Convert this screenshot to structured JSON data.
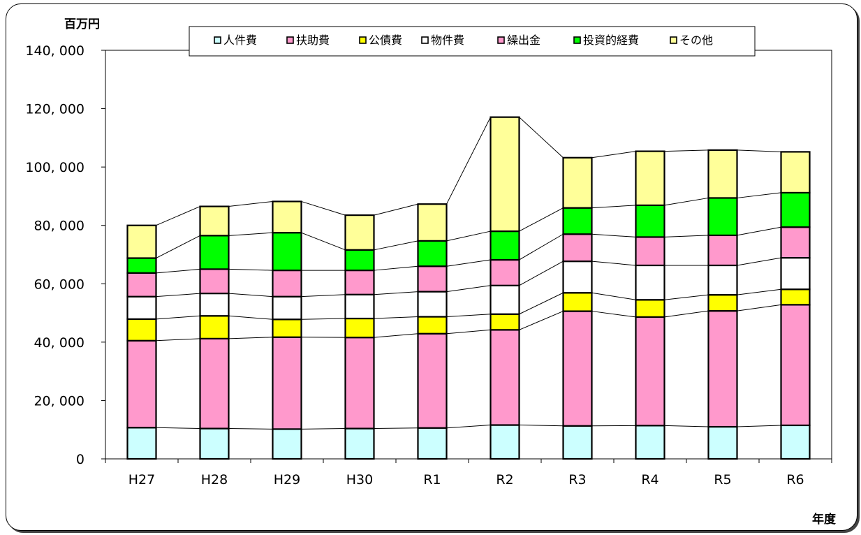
{
  "chart_data": {
    "type": "bar",
    "stacked": true,
    "categories": [
      "H27",
      "H28",
      "H29",
      "H30",
      "R1",
      "R2",
      "R3",
      "R4",
      "R5",
      "R6"
    ],
    "series": [
      {
        "name": "人件費",
        "color": "#ccffff",
        "values": [
          10700,
          10400,
          10200,
          10400,
          10600,
          11600,
          11300,
          11400,
          11000,
          11500
        ]
      },
      {
        "name": "扶助費",
        "color": "#ff99cc",
        "values": [
          29800,
          30800,
          31500,
          31200,
          32300,
          32600,
          39300,
          37200,
          39700,
          41300
        ]
      },
      {
        "name": "公債費",
        "color": "#ffff00",
        "values": [
          7400,
          7800,
          6100,
          6500,
          5800,
          5400,
          6300,
          5900,
          5500,
          5300
        ]
      },
      {
        "name": "物件費",
        "color": "#ffffff",
        "values": [
          7700,
          7700,
          7800,
          8200,
          8600,
          9800,
          10800,
          11800,
          10100,
          10800
        ]
      },
      {
        "name": "繰出金",
        "color": "#ff99cc",
        "values": [
          8100,
          8300,
          9000,
          8300,
          8700,
          8800,
          9300,
          9700,
          10300,
          10500
        ]
      },
      {
        "name": "投資的経費",
        "color": "#00ff00",
        "values": [
          5100,
          11500,
          12900,
          7000,
          8700,
          9800,
          9000,
          10900,
          12800,
          11800
        ]
      },
      {
        "name": "その他",
        "color": "#ffff99",
        "values": [
          11200,
          10000,
          10700,
          11900,
          12600,
          39100,
          17200,
          18500,
          16400,
          14000
        ]
      }
    ],
    "ylim": [
      0,
      140000
    ],
    "yticks": [
      "0",
      "20, 000",
      "40, 000",
      "60, 000",
      "80, 000",
      "100, 000",
      "120, 000",
      "140, 000"
    ],
    "ytick_values": [
      0,
      20000,
      40000,
      60000,
      80000,
      100000,
      120000,
      140000
    ],
    "yunit": "百万円",
    "xunit": "年度",
    "legend_position": "top",
    "series_lines": true
  }
}
